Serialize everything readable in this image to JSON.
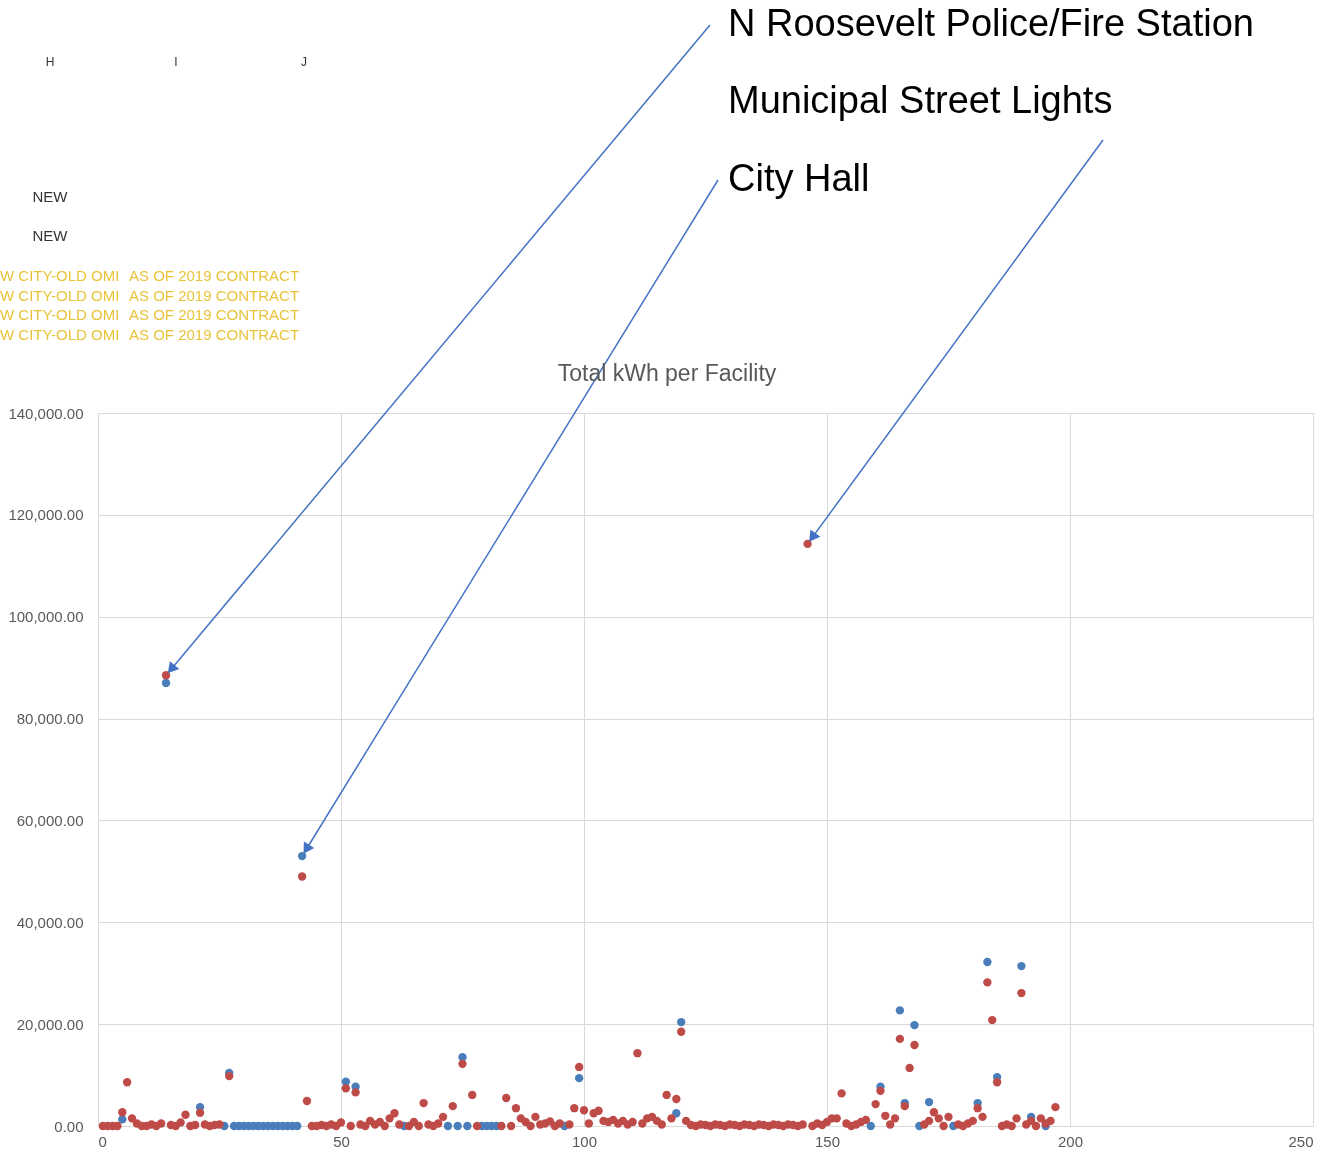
{
  "chart_data": {
    "type": "scatter",
    "title": "Total kWh per Facility",
    "xlim": [
      0,
      250
    ],
    "xticks": [
      0,
      50,
      100,
      150,
      200,
      250
    ],
    "ylim": [
      0,
      140000
    ],
    "yticks": [
      {
        "value": 0,
        "label": "0.00"
      },
      {
        "value": 20000,
        "label": "20,000.00"
      },
      {
        "value": 40000,
        "label": "40,000.00"
      },
      {
        "value": 60000,
        "label": "60,000.00"
      },
      {
        "value": 80000,
        "label": "80,000.00"
      },
      {
        "value": 100000,
        "label": "100,000.00"
      },
      {
        "value": 120000,
        "label": "120,000.00"
      },
      {
        "value": 140000,
        "label": "140,000.00"
      }
    ],
    "grid": true,
    "marker": "circle",
    "series": [
      {
        "color": "#4a7ebb",
        "x": [
          5,
          14,
          21,
          26,
          27,
          28,
          29,
          30,
          31,
          32,
          33,
          34,
          35,
          36,
          37,
          38,
          39,
          40,
          41,
          42,
          51,
          53,
          63,
          72,
          74,
          75,
          76,
          79,
          80,
          81,
          82,
          96,
          99,
          119,
          120,
          159,
          161,
          165,
          166,
          168,
          169,
          171,
          176,
          181,
          183,
          185,
          190,
          192,
          195
        ],
        "values": [
          1300,
          87000,
          3700,
          0,
          10400,
          0,
          0,
          0,
          0,
          0,
          0,
          0,
          0,
          0,
          0,
          0,
          0,
          0,
          0,
          53000,
          8700,
          7700,
          0,
          0,
          0,
          13500,
          0,
          0,
          0,
          0,
          0,
          0,
          9400,
          2500,
          20400,
          0,
          7700,
          22700,
          4500,
          19800,
          0,
          4700,
          0,
          4500,
          32200,
          9600,
          31400,
          1800,
          0
        ]
      },
      {
        "color": "#be4b48",
        "x": [
          1,
          2,
          3,
          4,
          5,
          6,
          7,
          8,
          9,
          10,
          11,
          12,
          13,
          14,
          15,
          16,
          17,
          18,
          19,
          20,
          21,
          22,
          23,
          24,
          25,
          27,
          42,
          43,
          44,
          45,
          46,
          47,
          48,
          49,
          50,
          51,
          52,
          53,
          54,
          55,
          56,
          57,
          58,
          59,
          60,
          61,
          62,
          64,
          65,
          66,
          67,
          68,
          69,
          70,
          71,
          73,
          75,
          77,
          78,
          83,
          84,
          85,
          86,
          87,
          88,
          89,
          90,
          91,
          92,
          93,
          94,
          95,
          97,
          98,
          99,
          100,
          101,
          102,
          103,
          104,
          105,
          106,
          107,
          108,
          109,
          110,
          111,
          112,
          113,
          114,
          115,
          116,
          117,
          118,
          119,
          120,
          121,
          122,
          123,
          124,
          125,
          126,
          127,
          128,
          129,
          130,
          131,
          132,
          133,
          134,
          135,
          136,
          137,
          138,
          139,
          140,
          141,
          142,
          143,
          144,
          145,
          146,
          147,
          148,
          149,
          150,
          151,
          152,
          153,
          154,
          155,
          156,
          157,
          158,
          160,
          161,
          162,
          163,
          164,
          165,
          166,
          167,
          168,
          170,
          171,
          172,
          173,
          174,
          175,
          177,
          178,
          179,
          180,
          181,
          182,
          183,
          184,
          185,
          186,
          187,
          188,
          189,
          190,
          191,
          192,
          193,
          194,
          195,
          196,
          197
        ],
        "values": [
          0,
          0,
          0,
          0,
          2700,
          8600,
          1500,
          500,
          0,
          0,
          300,
          0,
          500,
          88500,
          200,
          0,
          700,
          2200,
          0,
          200,
          2600,
          300,
          0,
          200,
          300,
          9800,
          49000,
          4900,
          0,
          0,
          200,
          0,
          300,
          0,
          700,
          7400,
          0,
          6600,
          300,
          0,
          1000,
          300,
          800,
          0,
          1500,
          2500,
          300,
          0,
          800,
          0,
          4500,
          300,
          0,
          500,
          1800,
          3900,
          12200,
          6100,
          0,
          0,
          5500,
          0,
          3500,
          1500,
          800,
          0,
          1800,
          300,
          500,
          900,
          0,
          500,
          300,
          3500,
          11600,
          3100,
          500,
          2500,
          3000,
          1000,
          800,
          1200,
          500,
          1000,
          300,
          800,
          14300,
          500,
          1500,
          1800,
          1000,
          300,
          6100,
          1500,
          5300,
          18500,
          1000,
          200,
          0,
          300,
          200,
          0,
          300,
          200,
          0,
          300,
          200,
          0,
          300,
          200,
          0,
          300,
          200,
          0,
          300,
          200,
          0,
          300,
          200,
          0,
          300,
          114300,
          0,
          500,
          200,
          800,
          1500,
          1500,
          6400,
          500,
          0,
          300,
          800,
          1200,
          4300,
          6900,
          2000,
          300,
          1500,
          17100,
          3900,
          11400,
          15900,
          300,
          1000,
          2700,
          1500,
          0,
          1800,
          300,
          0,
          500,
          1000,
          3500,
          1800,
          28200,
          20800,
          8600,
          0,
          300,
          0,
          1500,
          26100,
          300,
          1000,
          0,
          1500,
          500,
          1000,
          3700
        ]
      }
    ],
    "annotations": [
      {
        "text": "N Roosevelt Police/Fire Station",
        "x": 14,
        "y": 88500
      },
      {
        "text": "Municipal Street Lights",
        "x": 146,
        "y": 114300
      },
      {
        "text": "City Hall",
        "x": 42,
        "y": 53000
      },
      "H",
      "I",
      "J",
      "NEW",
      "NEW",
      "W CITY-OLD OMI",
      "AS OF 2019 CONTRACT",
      "W CITY-OLD OMI",
      "AS OF 2019 CONTRACT",
      "W CITY-OLD OMI",
      "AS OF 2019 CONTRACT",
      "W CITY-OLD OMI",
      "AS OF 2019 CONTRACT"
    ]
  }
}
